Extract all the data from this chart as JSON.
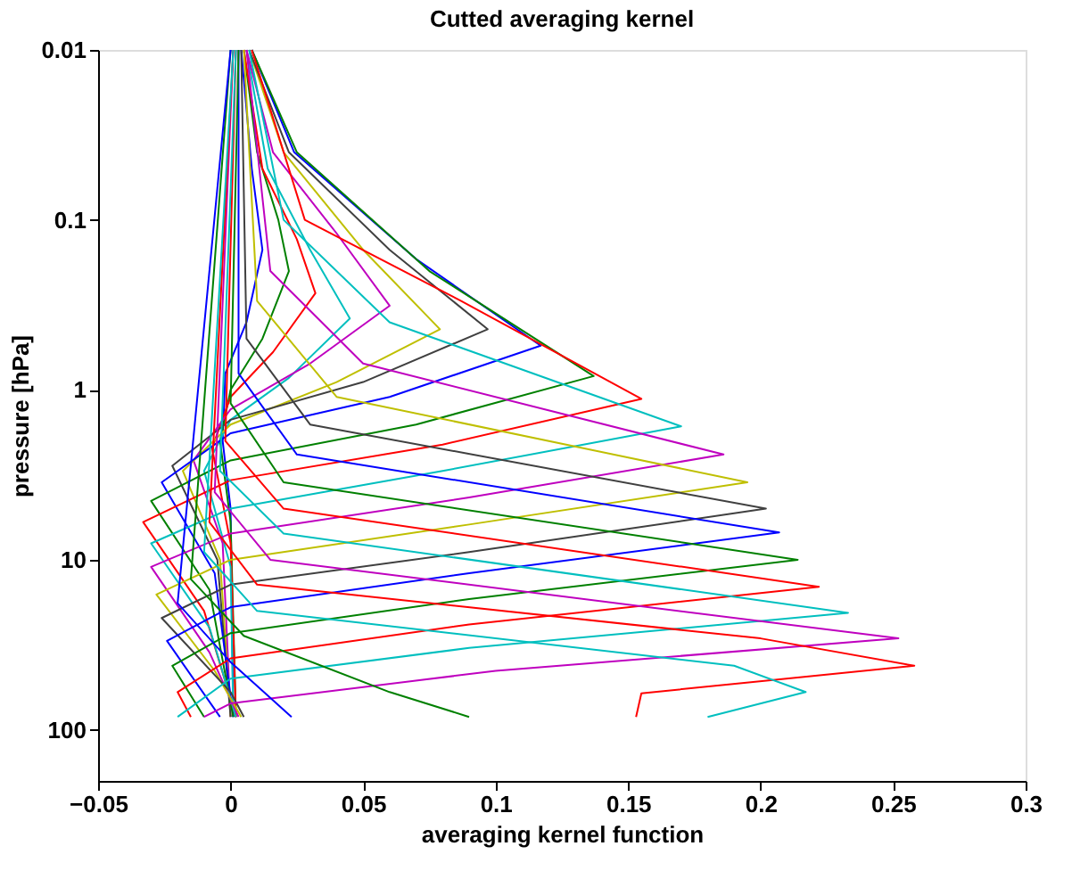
{
  "chart_data": {
    "type": "line",
    "title": "Cutted averaging kernel",
    "xlabel": "averaging kernel function",
    "ylabel": "pressure [hPa]",
    "xlim": [
      -0.05,
      0.3
    ],
    "xticks": [
      -0.05,
      0,
      0.05,
      0.1,
      0.15,
      0.2,
      0.25,
      0.3
    ],
    "ylim": [
      200,
      0.01
    ],
    "yticks": [
      0.01,
      0.1,
      1,
      10,
      100
    ],
    "log": "y",
    "grid": false,
    "legend": false,
    "line_style": "solid",
    "marker": "none",
    "series": [
      {
        "color": "#0000ff",
        "x": [
          0.004,
          0.008,
          0.012,
          0.006,
          -0.002,
          -0.003,
          0,
          0.001
        ],
        "values": [
          0.01,
          0.05,
          0.15,
          0.4,
          0.8,
          2,
          5,
          84
        ]
      },
      {
        "color": "#008000",
        "x": [
          0.005,
          0.01,
          0.018,
          0.022,
          0.012,
          0,
          -0.004,
          0,
          0.002
        ],
        "values": [
          0.01,
          0.04,
          0.1,
          0.2,
          0.5,
          1,
          2,
          6,
          84
        ]
      },
      {
        "color": "#ff0000",
        "x": [
          0.005,
          0.012,
          0.025,
          0.032,
          0.016,
          0,
          -0.007,
          0,
          0.002
        ],
        "values": [
          0.01,
          0.05,
          0.13,
          0.27,
          0.6,
          1.1,
          2.2,
          8,
          84
        ]
      },
      {
        "color": "#00bfbf",
        "x": [
          0.006,
          0.014,
          0.03,
          0.045,
          0.022,
          0,
          -0.01,
          0,
          0.001
        ],
        "values": [
          0.01,
          0.05,
          0.15,
          0.38,
          0.85,
          1.5,
          3,
          11,
          84
        ]
      },
      {
        "color": "#bf00bf",
        "x": [
          0.006,
          0.016,
          0.04,
          0.06,
          0.03,
          0,
          -0.014,
          -0.003,
          0
        ],
        "values": [
          0.01,
          0.04,
          0.12,
          0.32,
          0.7,
          1.3,
          2.6,
          8,
          84
        ]
      },
      {
        "color": "#bfbf00",
        "x": [
          0.007,
          0.02,
          0.05,
          0.079,
          0.04,
          0,
          -0.018,
          -0.004,
          0
        ],
        "values": [
          0.01,
          0.04,
          0.15,
          0.44,
          0.9,
          1.6,
          3,
          10,
          84
        ]
      },
      {
        "color": "#404040",
        "x": [
          0.007,
          0.022,
          0.06,
          0.097,
          0.05,
          0,
          -0.022,
          -0.005,
          0
        ],
        "values": [
          0.01,
          0.04,
          0.15,
          0.44,
          0.9,
          1.5,
          2.8,
          10,
          84
        ]
      },
      {
        "color": "#0000ff",
        "x": [
          0.008,
          0.024,
          0.07,
          0.117,
          0.06,
          0,
          -0.026,
          -0.006,
          0.001
        ],
        "values": [
          0.01,
          0.04,
          0.17,
          0.55,
          1.1,
          1.8,
          3.5,
          12,
          84
        ]
      },
      {
        "color": "#008000",
        "x": [
          0.008,
          0.025,
          0.075,
          0.137,
          0.07,
          0,
          -0.03,
          -0.008,
          0.001
        ],
        "values": [
          0.01,
          0.04,
          0.2,
          0.83,
          1.6,
          2.6,
          4.5,
          15,
          84
        ]
      },
      {
        "color": "#ff0000",
        "x": [
          0.008,
          0.028,
          0.087,
          0.155,
          0.08,
          0,
          -0.033,
          -0.01,
          0.002
        ],
        "values": [
          0.01,
          0.1,
          0.3,
          1.13,
          2.1,
          3.4,
          6,
          20,
          84
        ]
      },
      {
        "color": "#00bfbf",
        "x": [
          0.007,
          0.02,
          0.06,
          0.17,
          0.08,
          0,
          -0.03,
          -0.008,
          0.002
        ],
        "values": [
          0.01,
          0.1,
          0.4,
          1.64,
          3,
          5,
          8,
          25,
          84
        ]
      },
      {
        "color": "#bf00bf",
        "x": [
          0.006,
          0.015,
          0.05,
          0.186,
          0.09,
          0,
          -0.03,
          -0.008,
          0.003
        ],
        "values": [
          0.01,
          0.2,
          0.7,
          2.4,
          4.3,
          7,
          11,
          35,
          84
        ]
      },
      {
        "color": "#bfbf00",
        "x": [
          0.005,
          0.01,
          0.04,
          0.195,
          0.09,
          0,
          -0.028,
          -0.006,
          0.004
        ],
        "values": [
          0.01,
          0.3,
          1.1,
          3.5,
          6.2,
          10,
          16,
          45,
          84
        ]
      },
      {
        "color": "#404040",
        "x": [
          0.004,
          0.006,
          0.03,
          0.202,
          0.09,
          0,
          -0.026,
          0,
          0.005
        ],
        "values": [
          0.01,
          0.5,
          1.6,
          5,
          9,
          14,
          22,
          60,
          84
        ]
      },
      {
        "color": "#0000ff",
        "x": [
          0.003,
          0.003,
          0.025,
          0.207,
          0.09,
          0,
          -0.024,
          -0.004
        ],
        "values": [
          0.01,
          0.8,
          2.4,
          6.9,
          12,
          19,
          30,
          84
        ]
      },
      {
        "color": "#008000",
        "x": [
          0.003,
          0,
          0.02,
          0.214,
          0.09,
          0,
          -0.022,
          -0.01
        ],
        "values": [
          0.01,
          1.2,
          3.5,
          10,
          17,
          27,
          42,
          84
        ]
      },
      {
        "color": "#ff0000",
        "x": [
          0.002,
          -0.002,
          0.02,
          0.222,
          0.09,
          0,
          -0.02,
          -0.015
        ],
        "values": [
          0.01,
          2,
          5,
          14.4,
          24,
          38,
          60,
          84
        ]
      },
      {
        "color": "#00bfbf",
        "x": [
          0.002,
          -0.004,
          0.02,
          0.233,
          0.09,
          0,
          -0.02
        ],
        "values": [
          0.01,
          3,
          7,
          20.5,
          33,
          50,
          84
        ]
      },
      {
        "color": "#bf00bf",
        "x": [
          0.001,
          -0.006,
          0.015,
          0.252,
          0.1,
          0,
          -0.01
        ],
        "values": [
          0.01,
          4,
          10,
          29,
          45,
          70,
          84
        ]
      },
      {
        "color": "#ff0000",
        "x": [
          0.001,
          -0.008,
          0.01,
          0.2,
          0.258,
          0.155,
          0.153
        ],
        "values": [
          0.01,
          6,
          14,
          29,
          42,
          61,
          84
        ]
      },
      {
        "color": "#00bfbf",
        "x": [
          0.001,
          -0.01,
          0.01,
          0.19,
          0.217,
          0.18
        ],
        "values": [
          0.01,
          9,
          20,
          42,
          60,
          84
        ]
      },
      {
        "color": "#008000",
        "x": [
          0,
          -0.015,
          0.005,
          0.06,
          0.09
        ],
        "values": [
          0.01,
          13,
          28,
          60,
          84
        ]
      },
      {
        "color": "#0000ff",
        "x": [
          0,
          -0.02,
          0,
          0.023
        ],
        "values": [
          0.01,
          18,
          40,
          84
        ]
      }
    ]
  }
}
